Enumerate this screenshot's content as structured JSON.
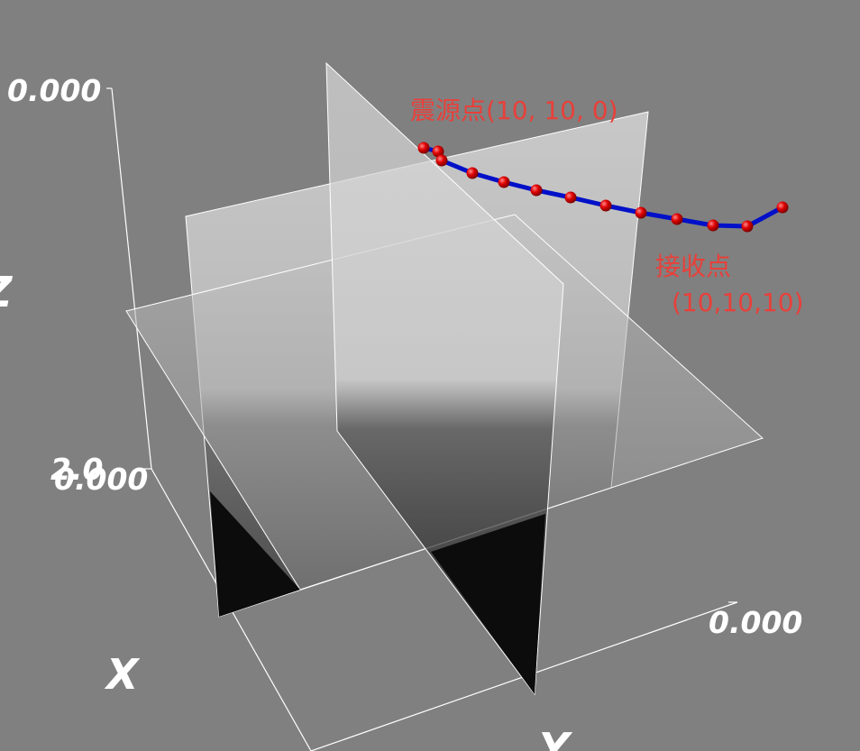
{
  "scene": {
    "background": "#808080",
    "path_color": "#0010c8",
    "node_color": "#dd0000",
    "annotation_color": "#e8403a"
  },
  "axes": {
    "z_top_tick": "0.000",
    "z_bottom_tick": "0.000",
    "z_bottom_overlap": "2.0",
    "y_right_tick": "0.000",
    "x_title": "X",
    "y_title": "Y",
    "z_title": "Z"
  },
  "annotations": {
    "source": "震源点(10, 10, 0)",
    "receiver_line1": "接收点",
    "receiver_line2": "(10,10,10)"
  },
  "ray_path": {
    "node_count": 12
  }
}
